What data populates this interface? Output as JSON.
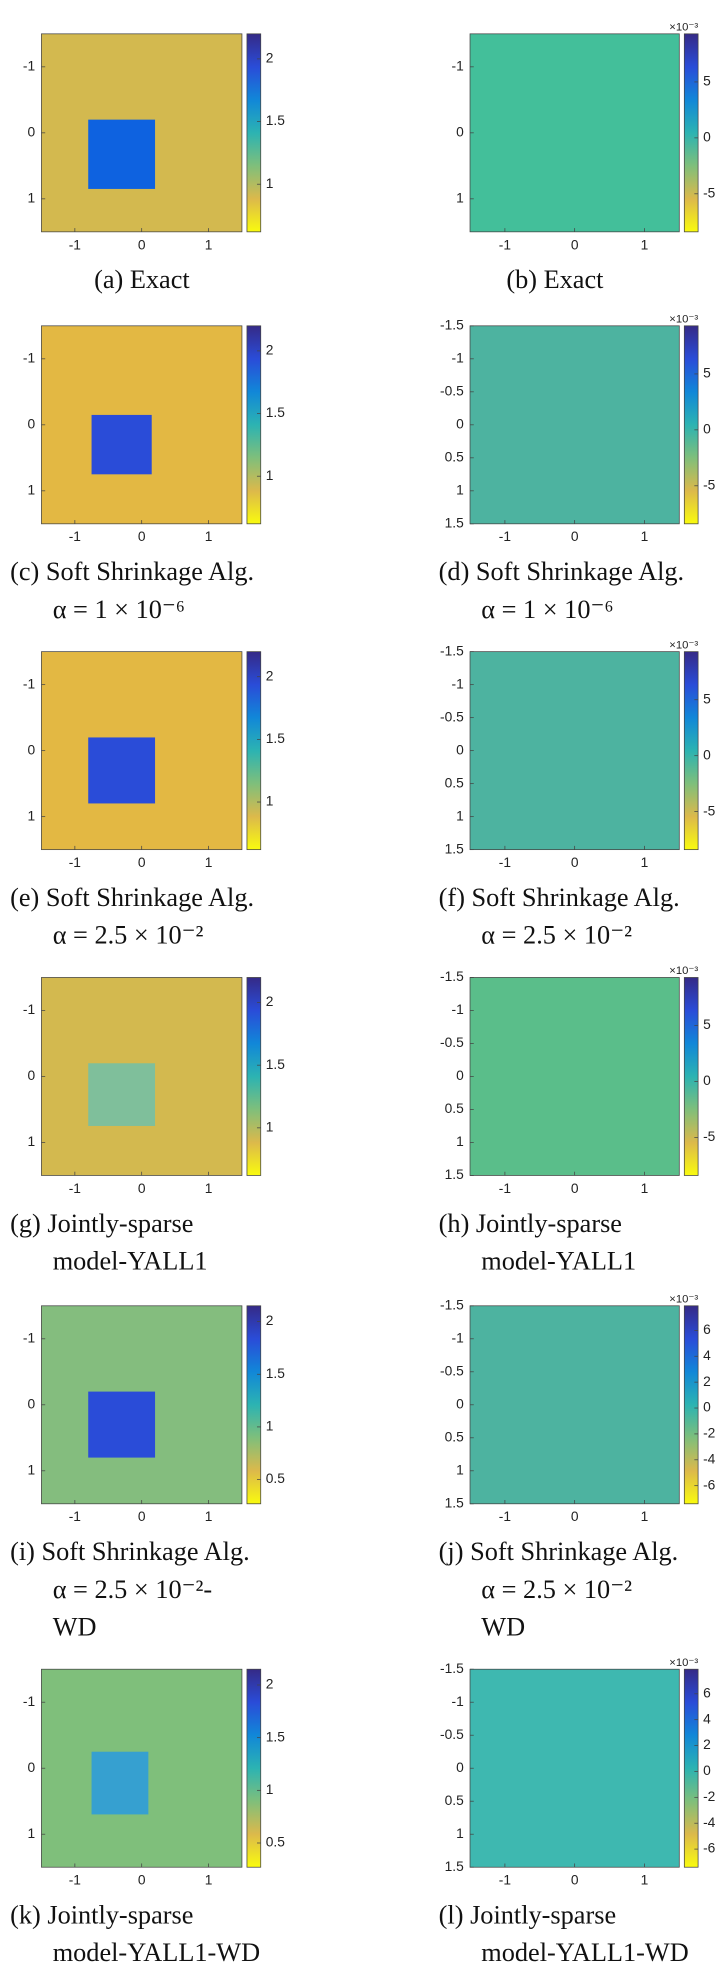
{
  "colormap": [
    "#f9fb0e",
    "#dcb94b",
    "#7fbf7b",
    "#2cb3b2",
    "#1187d8",
    "#2a4cd8",
    "#352a87"
  ],
  "panels": [
    {
      "caption": [
        "(a)  Exact"
      ],
      "xlim": [
        -1.5,
        1.5
      ],
      "ylim": [
        -1.5,
        1.5
      ],
      "xticks": [
        -1,
        0,
        1
      ],
      "yticks": [
        -1,
        0,
        1
      ],
      "clim": [
        0.62,
        2.2
      ],
      "cticks": [
        1,
        1.5,
        2
      ],
      "background": "#d3b94f",
      "inset": {
        "x": [
          -0.8,
          0.2
        ],
        "y": [
          -0.2,
          0.85
        ],
        "color": "#0e62e0"
      }
    },
    {
      "caption": [
        "(b) Exact"
      ],
      "xlim": [
        -1.5,
        1.5
      ],
      "ylim": [
        -1.5,
        1.5
      ],
      "xticks": [
        -1,
        0,
        1
      ],
      "yticks": [
        -1,
        0,
        1
      ],
      "clim": [
        -8.4,
        9.3
      ],
      "cticks": [
        -5,
        0,
        5
      ],
      "exponent": "×10⁻³",
      "background": "#43bf9a"
    },
    {
      "caption": [
        "(c) Soft Shrinkage Alg.",
        "α = 1 × 10⁻⁶"
      ],
      "xlim": [
        -1.5,
        1.5
      ],
      "ylim": [
        -1.5,
        1.5
      ],
      "xticks": [
        -1,
        0,
        1
      ],
      "yticks": [
        -1,
        0,
        1
      ],
      "clim": [
        0.62,
        2.2
      ],
      "cticks": [
        1,
        1.5,
        2
      ],
      "background": "#e3b843",
      "inset": {
        "x": [
          -0.75,
          0.15
        ],
        "y": [
          -0.15,
          0.75
        ],
        "color": "#2a4cd8"
      }
    },
    {
      "caption": [
        "(d) Soft Shrinkage Alg.",
        "α = 1 × 10⁻⁶"
      ],
      "xlim": [
        -1.5,
        1.5
      ],
      "ylim": [
        -1.5,
        1.5
      ],
      "xticks": [
        -1,
        0,
        1
      ],
      "yticks": [
        -1.5,
        -1,
        -0.5,
        0,
        0.5,
        1,
        1.5
      ],
      "clim": [
        -8.4,
        9.3
      ],
      "cticks": [
        -5,
        0,
        5
      ],
      "exponent": "×10⁻³",
      "background": "#4db3a0"
    },
    {
      "caption": [
        "(e) Soft Shrinkage Alg.",
        "α = 2.5 × 10⁻²"
      ],
      "xlim": [
        -1.5,
        1.5
      ],
      "ylim": [
        -1.5,
        1.5
      ],
      "xticks": [
        -1,
        0,
        1
      ],
      "yticks": [
        -1,
        0,
        1
      ],
      "clim": [
        0.62,
        2.2
      ],
      "cticks": [
        1,
        1.5,
        2
      ],
      "background": "#e3b843",
      "inset": {
        "x": [
          -0.8,
          0.2
        ],
        "y": [
          -0.2,
          0.8
        ],
        "color": "#2a4cd8"
      }
    },
    {
      "caption": [
        "(f) Soft Shrinkage Alg.",
        "α = 2.5 × 10⁻²"
      ],
      "xlim": [
        -1.5,
        1.5
      ],
      "ylim": [
        -1.5,
        1.5
      ],
      "xticks": [
        -1,
        0,
        1
      ],
      "yticks": [
        -1.5,
        -1,
        -0.5,
        0,
        0.5,
        1,
        1.5
      ],
      "clim": [
        -8.4,
        9.3
      ],
      "cticks": [
        -5,
        0,
        5
      ],
      "exponent": "×10⁻³",
      "background": "#4db3a0"
    },
    {
      "caption": [
        "(g) Jointly-sparse",
        "model-YALL1"
      ],
      "xlim": [
        -1.5,
        1.5
      ],
      "ylim": [
        -1.5,
        1.5
      ],
      "xticks": [
        -1,
        0,
        1
      ],
      "yticks": [
        -1,
        0,
        1
      ],
      "clim": [
        0.62,
        2.2
      ],
      "cticks": [
        1,
        1.5,
        2
      ],
      "background": "#d3b94f",
      "inset": {
        "x": [
          -0.8,
          0.2
        ],
        "y": [
          -0.2,
          0.75
        ],
        "color": "#7fbf9b"
      }
    },
    {
      "caption": [
        "(h) Jointly-sparse",
        "model-YALL1"
      ],
      "xlim": [
        -1.5,
        1.5
      ],
      "ylim": [
        -1.5,
        1.5
      ],
      "xticks": [
        -1,
        0,
        1
      ],
      "yticks": [
        -1.5,
        -1,
        -0.5,
        0,
        0.5,
        1,
        1.5
      ],
      "clim": [
        -8.4,
        9.3
      ],
      "cticks": [
        -5,
        0,
        5
      ],
      "exponent": "×10⁻³",
      "background": "#5abe8a"
    },
    {
      "caption": [
        "(i) Soft Shrinkage Alg.",
        "α   =   2.5 × 10⁻²-",
        "WD"
      ],
      "xlim": [
        -1.5,
        1.5
      ],
      "ylim": [
        -1.5,
        1.5
      ],
      "xticks": [
        -1,
        0,
        1
      ],
      "yticks": [
        -1,
        0,
        1
      ],
      "clim": [
        0.27,
        2.15
      ],
      "cticks": [
        0.5,
        1,
        1.5,
        2
      ],
      "background": "#84bd7e",
      "inset": {
        "x": [
          -0.8,
          0.2
        ],
        "y": [
          -0.2,
          0.8
        ],
        "color": "#2a4cd8"
      }
    },
    {
      "caption": [
        "(j) Soft Shrinkage Alg.",
        "α   =   2.5 × 10⁻²",
        "WD"
      ],
      "xlim": [
        -1.5,
        1.5
      ],
      "ylim": [
        -1.5,
        1.5
      ],
      "xticks": [
        -1,
        0,
        1
      ],
      "yticks": [
        -1.5,
        -1,
        -0.5,
        0,
        0.5,
        1,
        1.5
      ],
      "clim": [
        -7.4,
        7.9
      ],
      "cticks": [
        -6,
        -4,
        -2,
        0,
        2,
        4,
        6
      ],
      "exponent": "×10⁻³",
      "background": "#4db3a0"
    },
    {
      "caption": [
        "(k) Jointly-sparse",
        "model-YALL1-WD"
      ],
      "xlim": [
        -1.5,
        1.5
      ],
      "ylim": [
        -1.5,
        1.5
      ],
      "xticks": [
        -1,
        0,
        1
      ],
      "yticks": [
        -1,
        0,
        1
      ],
      "clim": [
        0.27,
        2.15
      ],
      "cticks": [
        0.5,
        1,
        1.5,
        2
      ],
      "background": "#7fbf7b",
      "inset": {
        "x": [
          -0.75,
          0.1
        ],
        "y": [
          -0.25,
          0.7
        ],
        "color": "#36a0d0"
      }
    },
    {
      "caption": [
        "(l) Jointly-sparse",
        "model-YALL1-WD"
      ],
      "xlim": [
        -1.5,
        1.5
      ],
      "ylim": [
        -1.5,
        1.5
      ],
      "xticks": [
        -1,
        0,
        1
      ],
      "yticks": [
        -1.5,
        -1,
        -0.5,
        0,
        0.5,
        1,
        1.5
      ],
      "clim": [
        -7.4,
        7.9
      ],
      "cticks": [
        -6,
        -4,
        -2,
        0,
        2,
        4,
        6
      ],
      "exponent": "×10⁻³",
      "background": "#3eb8b0"
    }
  ]
}
